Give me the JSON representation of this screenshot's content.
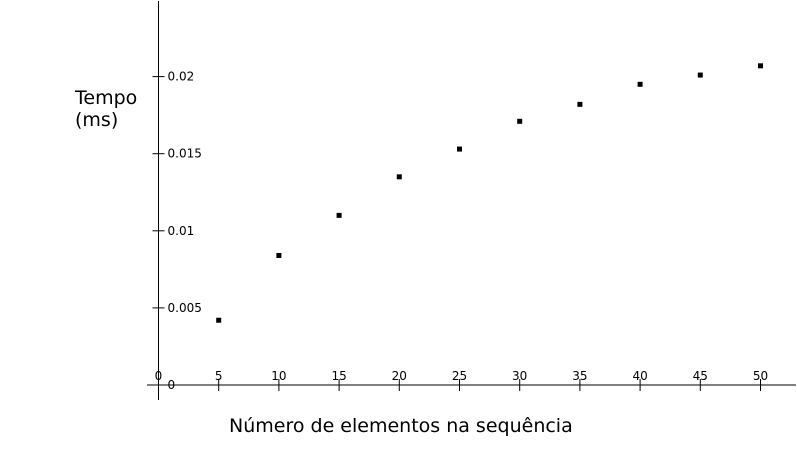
{
  "chart_data": {
    "type": "scatter",
    "title": "",
    "xlabel": "Número de elementos na sequência",
    "ylabel_lines": [
      "Tempo",
      "(ms)"
    ],
    "xlim": [
      0,
      52
    ],
    "ylim": [
      -0.0001,
      0.024
    ],
    "x_ticks": [
      0,
      5,
      10,
      15,
      20,
      25,
      30,
      35,
      40,
      45,
      50
    ],
    "x_tick_labels": [
      "0",
      "5",
      "10",
      "15",
      "20",
      "25",
      "30",
      "35",
      "40",
      "45",
      "50"
    ],
    "y_ticks": [
      0,
      0.005,
      0.01,
      0.015,
      0.02
    ],
    "y_tick_labels": [
      "0",
      "0.005",
      "0.01",
      "0.015",
      "0.02"
    ],
    "grid": false,
    "marker": "square",
    "marker_color": "#000000",
    "x": [
      5,
      10,
      15,
      20,
      25,
      30,
      35,
      40,
      45,
      50
    ],
    "y": [
      0.0042,
      0.0084,
      0.011,
      0.0135,
      0.0153,
      0.0171,
      0.0182,
      0.0195,
      0.0201,
      0.0207
    ]
  }
}
